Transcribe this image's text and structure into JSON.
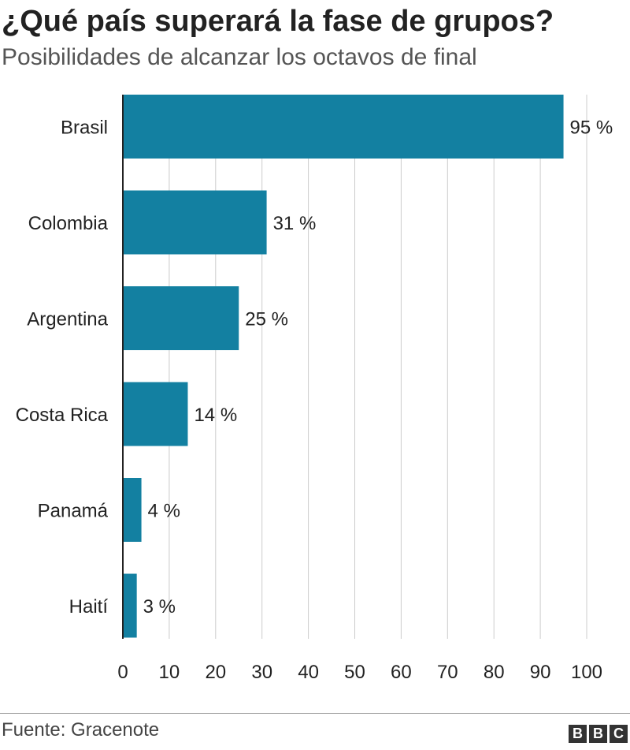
{
  "header": {
    "title": "¿Qué país superará la fase de grupos?",
    "subtitle": "Posibilidades de alcanzar los octavos de final"
  },
  "footer": {
    "source": "Fuente: Gracenote",
    "logo_letters": [
      "B",
      "B",
      "C"
    ]
  },
  "colors": {
    "bar": "#1380a1",
    "grid": "#cccccc",
    "axis": "#222222"
  },
  "chart_data": {
    "type": "bar",
    "orientation": "horizontal",
    "categories": [
      "Brasil",
      "Colombia",
      "Argentina",
      "Costa Rica",
      "Panamá",
      "Haití"
    ],
    "values": [
      95,
      31,
      25,
      14,
      4,
      3
    ],
    "data_labels": [
      "95 %",
      "31 %",
      "25 %",
      "14 %",
      "4 %",
      "3 %"
    ],
    "xlim": [
      0,
      100
    ],
    "x_ticks": [
      0,
      10,
      20,
      30,
      40,
      50,
      60,
      70,
      80,
      90,
      100
    ],
    "grid": true
  }
}
